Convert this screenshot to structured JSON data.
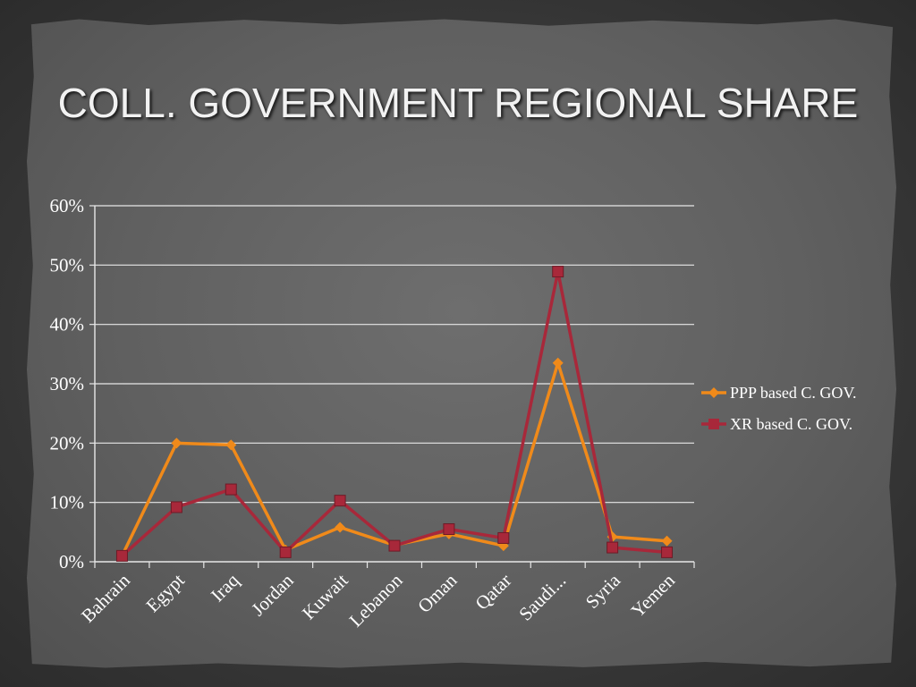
{
  "page_title": "COLL. GOVERNMENT REGIONAL SHARE",
  "colors": {
    "ppp": "#f08a1a",
    "xr": "#a8283a",
    "grid": "#e8e8e8",
    "text": "#ffffff"
  },
  "chart_data": {
    "type": "line",
    "title": "",
    "xlabel": "",
    "ylabel": "",
    "categories": [
      "Bahrain",
      "Egypt",
      "Iraq",
      "Jordan",
      "Kuwait",
      "Lebanon",
      "Oman",
      "Qatar",
      "Saudi...",
      "Syria",
      "Yemen"
    ],
    "ylim": [
      0,
      0.6
    ],
    "yticks": [
      0,
      0.1,
      0.2,
      0.3,
      0.4,
      0.5,
      0.6
    ],
    "ytick_labels": [
      "0%",
      "10%",
      "20%",
      "30%",
      "40%",
      "50%",
      "60%"
    ],
    "grid": true,
    "legend_position": "right",
    "series": [
      {
        "name": "PPP based C. GOV.",
        "marker": "diamond",
        "color": "#f08a1a",
        "values": [
          0.01,
          0.2,
          0.197,
          0.02,
          0.058,
          0.028,
          0.047,
          0.027,
          0.335,
          0.042,
          0.035
        ]
      },
      {
        "name": "XR based C. GOV.",
        "marker": "square",
        "color": "#a8283a",
        "values": [
          0.01,
          0.092,
          0.122,
          0.016,
          0.103,
          0.027,
          0.055,
          0.04,
          0.489,
          0.024,
          0.016
        ]
      }
    ]
  }
}
